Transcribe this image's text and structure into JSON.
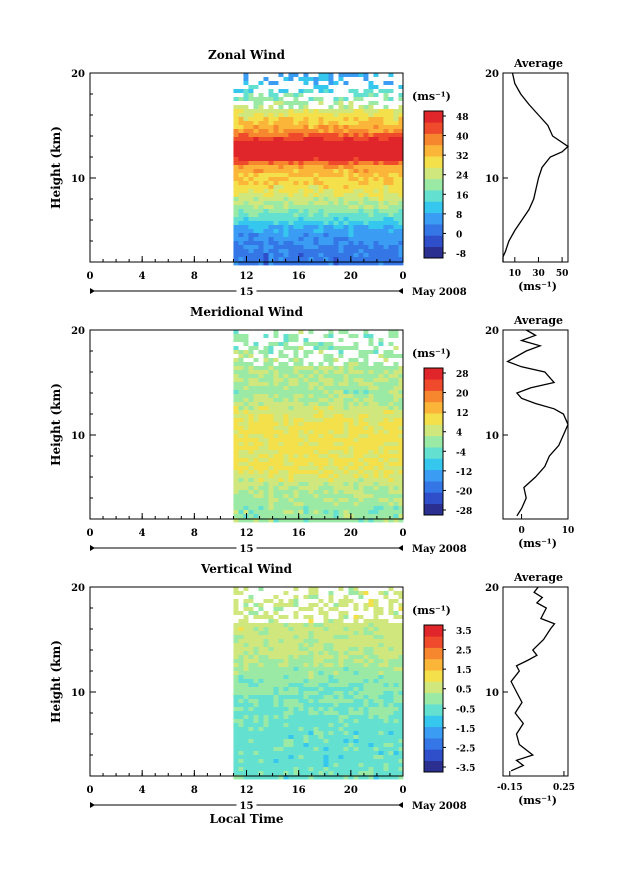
{
  "colors": {
    "ramp": [
      "#2b2f8f",
      "#2e4fc9",
      "#3476e6",
      "#3a9cf2",
      "#36c7ee",
      "#63e0d0",
      "#9aeaa6",
      "#cfe77d",
      "#f4e04a",
      "#fbb63a",
      "#f7872f",
      "#ee4a2b",
      "#e0262a"
    ],
    "white": "#ffffff"
  },
  "chart_data": [
    {
      "type": "heatmap",
      "title": "Zonal Wind",
      "ylabel": "Height (km)",
      "ylim": [
        2,
        20
      ],
      "y_ticks": [
        "10",
        "20"
      ],
      "x_ticks": [
        "0",
        "4",
        "8",
        "12",
        "16",
        "20",
        "0"
      ],
      "day_label": "15",
      "date_label": "May 2008",
      "colorbar": {
        "unit_label": "(ms⁻¹)",
        "ticks": [
          "48",
          "40",
          "32",
          "24",
          "16",
          "8",
          "0",
          "-8"
        ],
        "values": [
          -8,
          0,
          8,
          16,
          24,
          32,
          40,
          48
        ]
      },
      "data_start_hour": 11,
      "profile": [
        [
          3,
          3
        ],
        [
          5,
          8
        ],
        [
          7,
          20
        ],
        [
          9,
          28
        ],
        [
          11,
          34
        ],
        [
          12.5,
          55
        ],
        [
          13.5,
          45
        ],
        [
          15,
          32
        ],
        [
          17,
          22
        ],
        [
          19,
          10
        ],
        [
          20,
          8
        ]
      ],
      "average": {
        "title": "Average",
        "x_ticks": [
          "10",
          "30",
          "50"
        ],
        "xlim": [
          0,
          55
        ],
        "unit_label": "(ms⁻¹)",
        "y_ticks": [
          "10",
          "20"
        ],
        "points": [
          [
            -2,
            2
          ],
          [
            0,
            2.5
          ],
          [
            2,
            3
          ],
          [
            5,
            4
          ],
          [
            10,
            5
          ],
          [
            16,
            6
          ],
          [
            22,
            7
          ],
          [
            26,
            8
          ],
          [
            28,
            9
          ],
          [
            30,
            10
          ],
          [
            33,
            11
          ],
          [
            40,
            12
          ],
          [
            50,
            12.5
          ],
          [
            55,
            13
          ],
          [
            42,
            14
          ],
          [
            38,
            15
          ],
          [
            30,
            16
          ],
          [
            22,
            17
          ],
          [
            15,
            18
          ],
          [
            10,
            19
          ],
          [
            8,
            20
          ]
        ]
      }
    },
    {
      "type": "heatmap",
      "title": "Meridional Wind",
      "ylabel": "Height (km)",
      "ylim": [
        2,
        20
      ],
      "y_ticks": [
        "10",
        "20"
      ],
      "x_ticks": [
        "0",
        "4",
        "8",
        "12",
        "16",
        "20",
        "0"
      ],
      "day_label": "15",
      "date_label": "May 2008",
      "colorbar": {
        "unit_label": "(ms⁻¹)",
        "ticks": [
          "28",
          "20",
          "12",
          "4",
          "-4",
          "-12",
          "-20",
          "-28"
        ],
        "values": [
          -28,
          -20,
          -12,
          -4,
          4,
          12,
          20,
          28
        ]
      },
      "data_start_hour": 11,
      "profile": [
        [
          3,
          0
        ],
        [
          5,
          3
        ],
        [
          7,
          7
        ],
        [
          9,
          8
        ],
        [
          11,
          8
        ],
        [
          13,
          3
        ],
        [
          14,
          0
        ],
        [
          15,
          2
        ],
        [
          17,
          1
        ],
        [
          19,
          -1
        ],
        [
          20,
          0
        ]
      ],
      "average": {
        "title": "Average",
        "x_ticks": [
          "0",
          "10"
        ],
        "xlim": [
          -4,
          10
        ],
        "unit_label": "(ms⁻¹)",
        "y_ticks": [
          "10",
          "20"
        ],
        "points": [
          [
            -1,
            2.3
          ],
          [
            0,
            3
          ],
          [
            1,
            4
          ],
          [
            0.5,
            5
          ],
          [
            3,
            6
          ],
          [
            5,
            7
          ],
          [
            6,
            8
          ],
          [
            8,
            9
          ],
          [
            9,
            10
          ],
          [
            10,
            11
          ],
          [
            9,
            12
          ],
          [
            7,
            12.5
          ],
          [
            3,
            13
          ],
          [
            0,
            13.5
          ],
          [
            -1,
            14
          ],
          [
            2,
            14.5
          ],
          [
            7,
            15
          ],
          [
            5,
            16
          ],
          [
            0,
            16.5
          ],
          [
            -3,
            17
          ],
          [
            1,
            18
          ],
          [
            4,
            18.5
          ],
          [
            0,
            19
          ],
          [
            3,
            19.5
          ],
          [
            1,
            20
          ]
        ]
      }
    },
    {
      "type": "heatmap",
      "title": "Vertical Wind",
      "ylabel": "Height (km)",
      "ylim": [
        2,
        20
      ],
      "y_ticks": [
        "10",
        "20"
      ],
      "x_ticks": [
        "0",
        "4",
        "8",
        "12",
        "16",
        "20",
        "0"
      ],
      "day_label": "15",
      "date_label": "May 2008",
      "xlabel": "Local Time",
      "colorbar": {
        "unit_label": "(ms⁻¹)",
        "ticks": [
          "3.5",
          "2.5",
          "1.5",
          "0.5",
          "-0.5",
          "-1.5",
          "-2.5",
          "-3.5"
        ],
        "values": [
          -3.5,
          -2.5,
          -1.5,
          -0.5,
          0.5,
          1.5,
          2.5,
          3.5
        ]
      },
      "data_start_hour": 11,
      "profile": [
        [
          3,
          -0.5
        ],
        [
          6,
          -0.5
        ],
        [
          9,
          -0.3
        ],
        [
          12,
          0
        ],
        [
          14,
          0.4
        ],
        [
          17,
          0.5
        ],
        [
          20,
          0.5
        ]
      ],
      "average": {
        "title": "Average",
        "x_ticks": [
          "-0.15",
          "0.25"
        ],
        "xlim": [
          -0.2,
          0.28
        ],
        "unit_label": "(ms⁻¹)",
        "y_ticks": [
          "10",
          "20"
        ],
        "points": [
          [
            -0.14,
            2.5
          ],
          [
            -0.05,
            3
          ],
          [
            -0.1,
            3.5
          ],
          [
            0.02,
            4
          ],
          [
            -0.08,
            5
          ],
          [
            -0.1,
            6
          ],
          [
            -0.05,
            7
          ],
          [
            -0.11,
            8
          ],
          [
            -0.06,
            9
          ],
          [
            -0.1,
            10
          ],
          [
            -0.14,
            11
          ],
          [
            -0.08,
            12
          ],
          [
            -0.1,
            12.5
          ],
          [
            -0.02,
            13
          ],
          [
            0.05,
            13.5
          ],
          [
            0.02,
            14
          ],
          [
            0.1,
            15
          ],
          [
            0.15,
            16
          ],
          [
            0.18,
            16.5
          ],
          [
            0.08,
            17
          ],
          [
            0.12,
            18
          ],
          [
            0.05,
            18.5
          ],
          [
            0.09,
            19
          ],
          [
            0.03,
            19.5
          ],
          [
            0.06,
            20
          ]
        ]
      }
    }
  ]
}
